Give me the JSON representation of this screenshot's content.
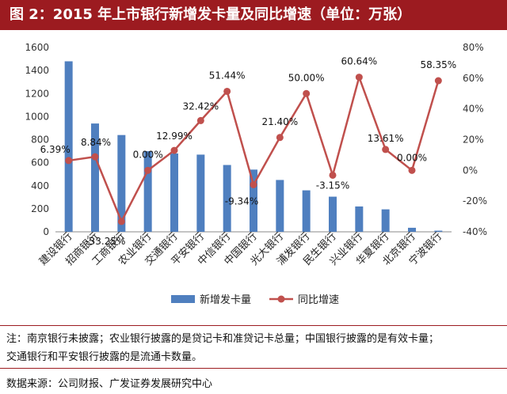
{
  "title": "图 2：2015 年上市银行新增发卡量及同比增速（单位：万张）",
  "chart_data": {
    "type": "bar+line",
    "title": "图 2：2015 年上市银行新增发卡量及同比增速（单位：万张）",
    "categories": [
      "建设银行",
      "招商银行",
      "工商银行",
      "农业银行",
      "交通银行",
      "平安银行",
      "中信银行",
      "中国银行",
      "光大银行",
      "浦发银行",
      "民生银行",
      "兴业银行",
      "华夏银行",
      "北京银行",
      "宁波银行"
    ],
    "series": [
      {
        "name": "新增发卡量",
        "type": "bar",
        "axis": "left",
        "color": "#4f7fbf",
        "values": [
          1480,
          940,
          840,
          700,
          680,
          670,
          580,
          540,
          450,
          360,
          305,
          220,
          195,
          35,
          10
        ]
      },
      {
        "name": "同比增速",
        "type": "line",
        "axis": "right",
        "unit": "%",
        "color": "#c0504d",
        "values": [
          6.39,
          8.84,
          -33.25,
          0.0,
          12.99,
          32.42,
          51.44,
          -9.34,
          21.4,
          50.0,
          -3.15,
          60.64,
          13.61,
          0.0,
          58.35
        ],
        "labels": [
          "6.39%",
          "8.84%",
          "-33.25%",
          "0.00%",
          "12.99%",
          "32.42%",
          "51.44%",
          "-9.34%",
          "21.40%",
          "50.00%",
          "-3.15%",
          "60.64%",
          "13.61%",
          "0.00%",
          "58.35%"
        ]
      }
    ],
    "y_left": {
      "min": 0,
      "max": 1600,
      "ticks": [
        "0",
        "200",
        "400",
        "600",
        "800",
        "1000",
        "1200",
        "1400",
        "1600"
      ]
    },
    "y_right": {
      "min": -40,
      "max": 80,
      "ticks": [
        "-40%",
        "-20%",
        "0%",
        "20%",
        "40%",
        "60%",
        "80%"
      ]
    },
    "legend": [
      "新增发卡量",
      "同比增速"
    ],
    "legend_position": "bottom"
  },
  "note_line1": "注：南京银行未披露；农业银行披露的是贷记卡和准贷记卡总量；中国银行披露的是有效卡量；",
  "note_line2": "交通银行和平安银行披露的是流通卡数量。",
  "source": "数据来源：公司财报、广发证券发展研究中心"
}
